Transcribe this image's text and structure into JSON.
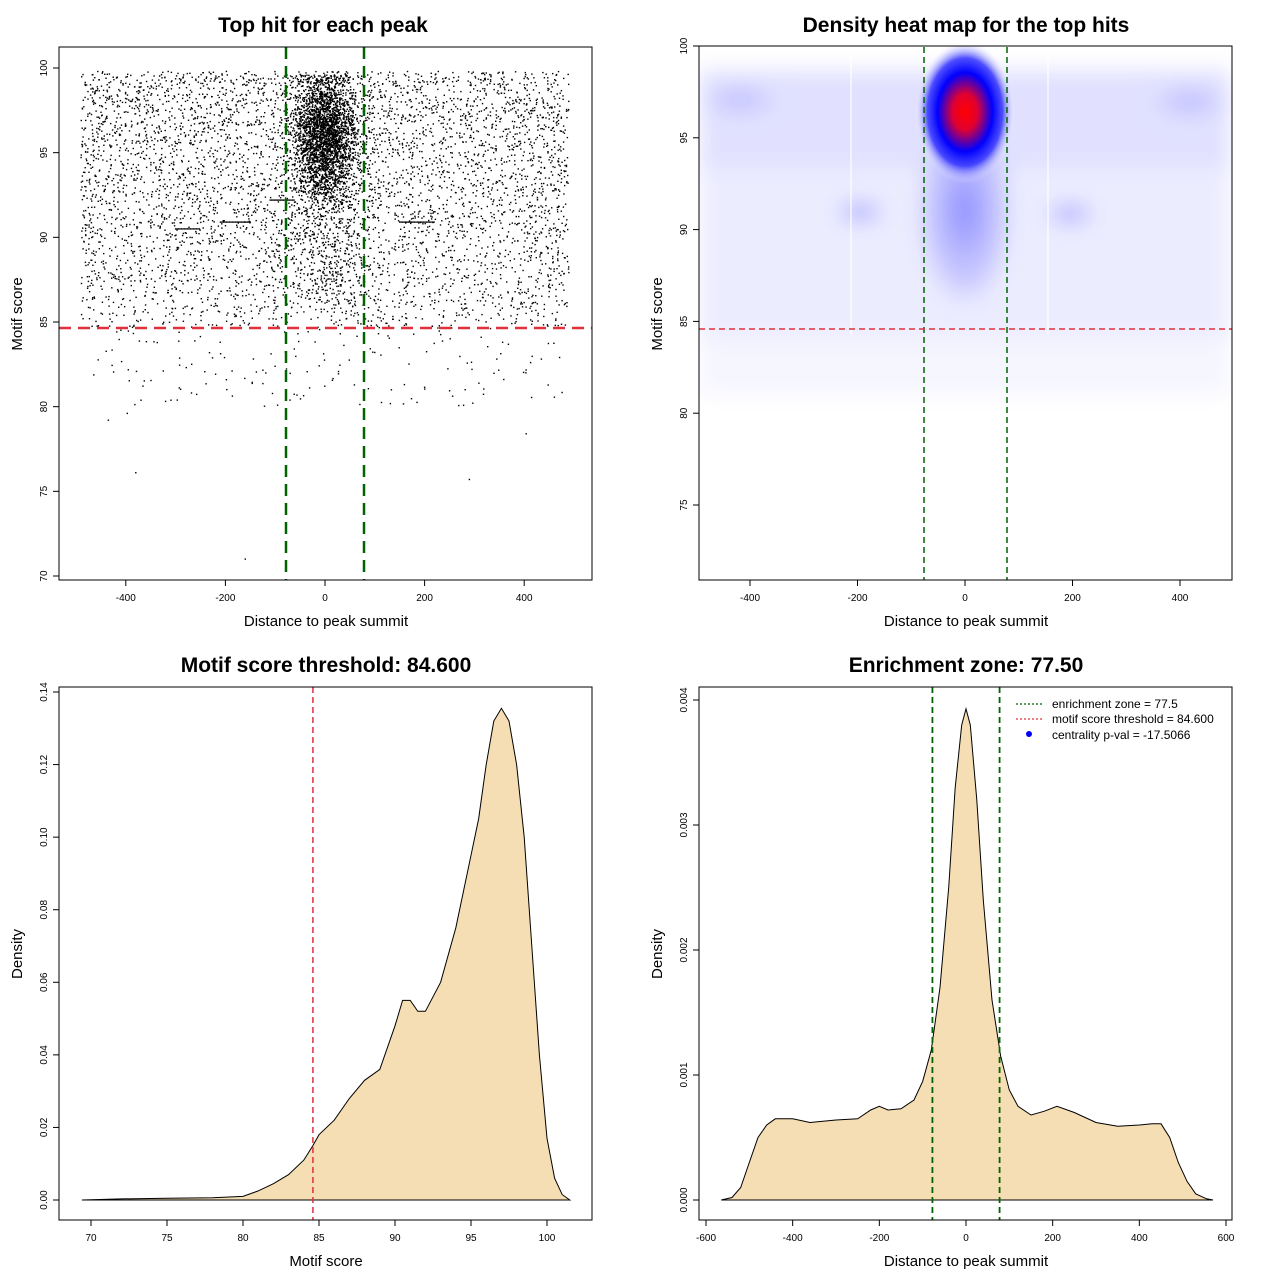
{
  "colors": {
    "green": "#006400",
    "red": "#e0303a",
    "wheat": "#f5deb3",
    "point": "#000000",
    "blue": "#0000ff"
  },
  "chart_data": [
    {
      "id": "scatter",
      "type": "scatter",
      "title": "Top hit for each peak",
      "xlabel": "Distance to peak summit",
      "ylabel": "Motif score",
      "xlim": [
        -500,
        500
      ],
      "ylim": [
        70,
        100
      ],
      "xticks": [
        -400,
        -200,
        0,
        200,
        400
      ],
      "yticks": [
        70,
        75,
        80,
        85,
        90,
        95,
        100
      ],
      "xtick_labels": [
        "-400",
        "-200",
        "0",
        "200",
        "400"
      ],
      "ytick_labels": [
        "70",
        "75",
        "80",
        "85",
        "90",
        "95",
        "100"
      ],
      "threshold_y": 84.6,
      "zone_x": [
        -77.5,
        77.5
      ],
      "points_description": "approx. 9000 points: uniform background between score 84.6 and 100 across x -490..490, dense cluster centered at x=0 score ~96, sparse points below 84.6",
      "n_points_estimated": 9000
    },
    {
      "id": "heatmap",
      "type": "heatmap",
      "title": "Density heat map for the top hits",
      "xlabel": "Distance to peak summit",
      "ylabel": "Motif score",
      "xlim": [
        -500,
        500
      ],
      "ylim": [
        71,
        100
      ],
      "xticks": [
        -400,
        -200,
        0,
        200,
        400
      ],
      "yticks": [
        75,
        80,
        85,
        90,
        95,
        100
      ],
      "xtick_labels": [
        "-400",
        "-200",
        "0",
        "200",
        "400"
      ],
      "ytick_labels": [
        "75",
        "80",
        "85",
        "90",
        "95",
        "100"
      ],
      "threshold_y": 84.6,
      "zone_x": [
        -77.5,
        77.5
      ],
      "hotspot": {
        "x": 0,
        "y": 96.8,
        "level": "high"
      },
      "secondary_hotspots": [
        {
          "x": -200,
          "y": 91
        },
        {
          "x": 200,
          "y": 91
        }
      ]
    },
    {
      "id": "score_density",
      "type": "area",
      "title": "Motif score threshold: 84.600",
      "xlabel": "Motif score",
      "ylabel": "Density",
      "xlim": [
        69,
        102
      ],
      "ylim": [
        0,
        0.14
      ],
      "xticks": [
        70,
        75,
        80,
        85,
        90,
        95,
        100
      ],
      "yticks": [
        0.0,
        0.02,
        0.04,
        0.06,
        0.08,
        0.1,
        0.12,
        0.14
      ],
      "xtick_labels": [
        "70",
        "75",
        "80",
        "85",
        "90",
        "95",
        "100"
      ],
      "ytick_labels": [
        "0.00",
        "0.02",
        "0.04",
        "0.06",
        "0.08",
        "0.10",
        "0.12",
        "0.14"
      ],
      "threshold_x": 84.6,
      "x": [
        69.4,
        72,
        75,
        78,
        80,
        81,
        82,
        83,
        84,
        84.6,
        85,
        86,
        87,
        88,
        89,
        90,
        90.5,
        91,
        91.5,
        92,
        93,
        94,
        95,
        95.5,
        96,
        96.5,
        97,
        97.5,
        98,
        98.5,
        99,
        99.5,
        100,
        100.5,
        101,
        101.5
      ],
      "y": [
        0,
        0.0003,
        0.0005,
        0.0006,
        0.001,
        0.0025,
        0.0045,
        0.007,
        0.011,
        0.015,
        0.018,
        0.022,
        0.028,
        0.033,
        0.036,
        0.048,
        0.055,
        0.055,
        0.052,
        0.052,
        0.06,
        0.075,
        0.095,
        0.105,
        0.12,
        0.132,
        0.1355,
        0.132,
        0.12,
        0.1,
        0.07,
        0.04,
        0.017,
        0.006,
        0.0015,
        0.0
      ]
    },
    {
      "id": "distance_density",
      "type": "area",
      "title": "Enrichment zone: 77.50",
      "xlabel": "Distance to peak summit",
      "ylabel": "Density",
      "xlim": [
        -600,
        600
      ],
      "ylim": [
        0,
        0.004
      ],
      "xticks": [
        -600,
        -400,
        -200,
        0,
        200,
        400,
        600
      ],
      "yticks": [
        0.0,
        0.001,
        0.002,
        0.003,
        0.004
      ],
      "xtick_labels": [
        "-600",
        "-400",
        "-200",
        "0",
        "200",
        "400",
        "600"
      ],
      "ytick_labels": [
        "0.000",
        "0.001",
        "0.002",
        "0.003",
        "0.004"
      ],
      "zone_x": [
        -77.5,
        77.5
      ],
      "x": [
        -565,
        -540,
        -520,
        -500,
        -480,
        -460,
        -440,
        -400,
        -360,
        -300,
        -250,
        -220,
        -200,
        -180,
        -150,
        -120,
        -100,
        -80,
        -60,
        -40,
        -25,
        -10,
        0,
        10,
        25,
        40,
        60,
        80,
        100,
        120,
        150,
        180,
        210,
        250,
        300,
        350,
        400,
        430,
        450,
        470,
        490,
        510,
        530,
        555,
        570
      ],
      "y": [
        0,
        2e-05,
        0.0001,
        0.0003,
        0.0005,
        0.0006,
        0.00065,
        0.00065,
        0.00062,
        0.00064,
        0.00065,
        0.00072,
        0.00075,
        0.00072,
        0.00073,
        0.0008,
        0.00095,
        0.0012,
        0.0017,
        0.0025,
        0.0033,
        0.0038,
        0.00393,
        0.0038,
        0.0032,
        0.0024,
        0.0016,
        0.00115,
        0.00088,
        0.00075,
        0.00068,
        0.00071,
        0.00075,
        0.0007,
        0.00062,
        0.00059,
        0.0006,
        0.00061,
        0.00061,
        0.0005,
        0.0003,
        0.00015,
        5e-05,
        1e-05,
        0
      ]
    }
  ],
  "legend": {
    "items": [
      {
        "label": "enrichment zone = 77.5",
        "style": "dotted-green"
      },
      {
        "label": "motif score threshold = 84.600",
        "style": "dotted-red"
      },
      {
        "label": "centrality p-val = -17.5066",
        "style": "blue-dot"
      }
    ]
  }
}
